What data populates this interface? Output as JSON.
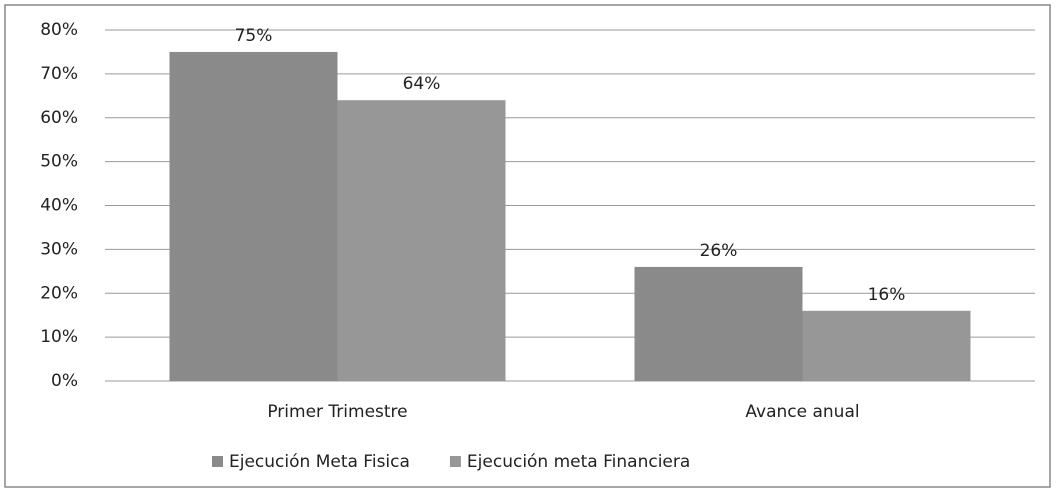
{
  "chart_data": {
    "type": "bar",
    "categories": [
      "Primer Trimestre",
      "Avance anual"
    ],
    "series": [
      {
        "name": "Ejecución Meta Fisica",
        "color": "#8a8a8a",
        "values": [
          75,
          26
        ],
        "value_labels": [
          "75%",
          "26%"
        ]
      },
      {
        "name": "Ejecución meta Financiera",
        "color": "#979797",
        "values": [
          64,
          16
        ],
        "value_labels": [
          "64%",
          "16%"
        ]
      }
    ],
    "ylim": [
      0,
      80
    ],
    "yticks": [
      {
        "value": 0,
        "label": "0%"
      },
      {
        "value": 10,
        "label": "10%"
      },
      {
        "value": 20,
        "label": "20%"
      },
      {
        "value": 30,
        "label": "30%"
      },
      {
        "value": 40,
        "label": "40%"
      },
      {
        "value": 50,
        "label": "50%"
      },
      {
        "value": 60,
        "label": "60%"
      },
      {
        "value": 70,
        "label": "70%"
      },
      {
        "value": 80,
        "label": "80%"
      }
    ],
    "grid": true,
    "legend": "bottom"
  }
}
